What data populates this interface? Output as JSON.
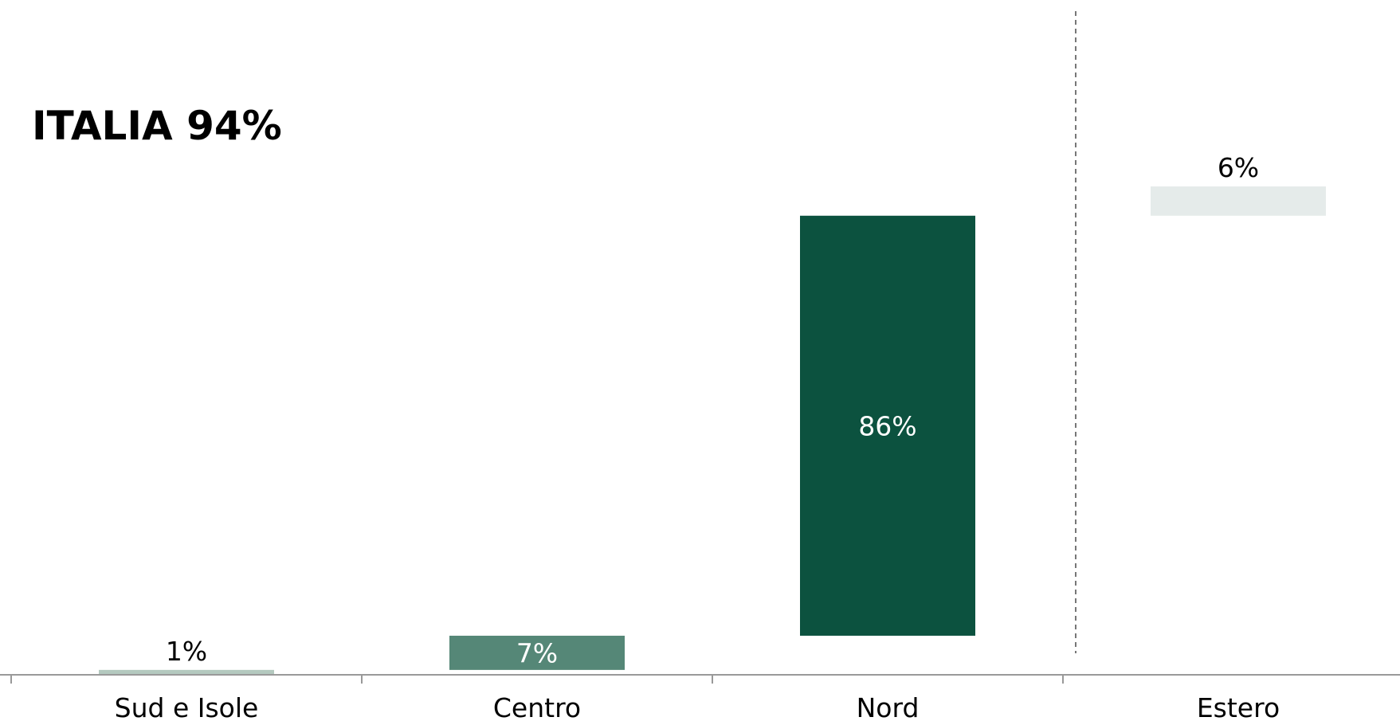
{
  "chart_data": {
    "type": "waterfall",
    "title": "ITALIA 94%",
    "categories": [
      "Sud e Isole",
      "Centro",
      "Nord",
      "Estero"
    ],
    "values": [
      1,
      7,
      86,
      6
    ],
    "value_labels": [
      "1%",
      "7%",
      "86%",
      "6%"
    ],
    "bar_colors": [
      "#b4c9bf",
      "#558777",
      "#0c523f",
      "#e5ebea"
    ],
    "label_colors": [
      "#000000",
      "#ffffff",
      "#ffffff",
      "#000000"
    ],
    "divider": "dashed line between Nord and Estero"
  }
}
